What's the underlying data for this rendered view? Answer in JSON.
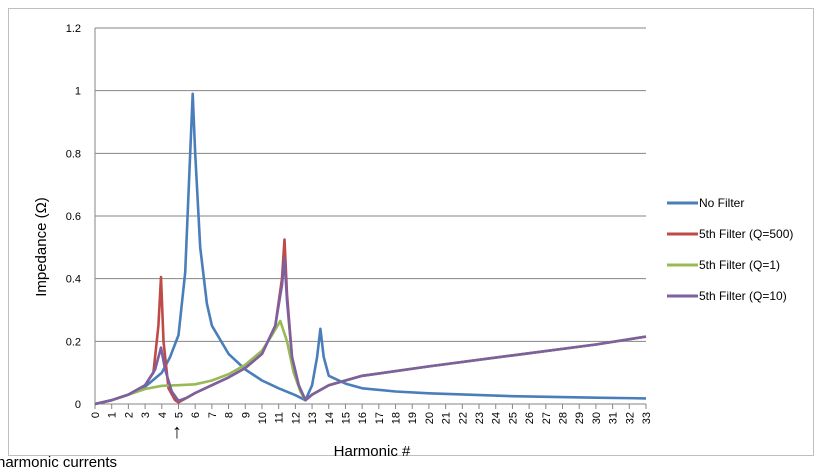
{
  "chart_data": {
    "type": "line",
    "xlabel": "Harmonic #",
    "ylabel": "Impedance (Ω)",
    "ylim": [
      0,
      1.2
    ],
    "yticks": [
      "0",
      "0.2",
      "0.4",
      "0.6",
      "0.8",
      "1",
      "1.2"
    ],
    "xlim": [
      0,
      33
    ],
    "xticks": [
      "0",
      "1",
      "2",
      "3",
      "4",
      "5",
      "6",
      "7",
      "8",
      "9",
      "10",
      "11",
      "12",
      "13",
      "14",
      "15",
      "16",
      "17",
      "18",
      "19",
      "20",
      "21",
      "22",
      "23",
      "24",
      "25",
      "26",
      "27",
      "28",
      "29",
      "30",
      "31",
      "32",
      "33"
    ],
    "grid": "horizontal",
    "legend_position": "right",
    "series": [
      {
        "name": "No Filter",
        "color": "#4a7ebb",
        "points": [
          [
            0,
            0
          ],
          [
            1,
            0.012
          ],
          [
            2,
            0.03
          ],
          [
            3,
            0.055
          ],
          [
            4,
            0.1
          ],
          [
            4.5,
            0.15
          ],
          [
            5,
            0.22
          ],
          [
            5.4,
            0.42
          ],
          [
            5.7,
            0.8
          ],
          [
            5.85,
            0.99
          ],
          [
            6,
            0.8
          ],
          [
            6.3,
            0.5
          ],
          [
            6.7,
            0.32
          ],
          [
            7,
            0.25
          ],
          [
            8,
            0.16
          ],
          [
            9,
            0.11
          ],
          [
            10,
            0.075
          ],
          [
            11,
            0.05
          ],
          [
            12,
            0.028
          ],
          [
            12.6,
            0.012
          ],
          [
            13,
            0.06
          ],
          [
            13.3,
            0.15
          ],
          [
            13.5,
            0.24
          ],
          [
            13.7,
            0.15
          ],
          [
            14,
            0.09
          ],
          [
            15,
            0.065
          ],
          [
            16,
            0.05
          ],
          [
            18,
            0.04
          ],
          [
            20,
            0.034
          ],
          [
            25,
            0.025
          ],
          [
            30,
            0.02
          ],
          [
            33,
            0.018
          ]
        ]
      },
      {
        "name": "5th Filter (Q=500)",
        "color": "#be4b48",
        "points": [
          [
            0,
            0
          ],
          [
            1,
            0.012
          ],
          [
            2,
            0.03
          ],
          [
            3,
            0.06
          ],
          [
            3.5,
            0.1
          ],
          [
            3.8,
            0.25
          ],
          [
            3.95,
            0.405
          ],
          [
            4.1,
            0.2
          ],
          [
            4.4,
            0.05
          ],
          [
            4.8,
            0.012
          ],
          [
            5,
            0.005
          ],
          [
            5.5,
            0.02
          ],
          [
            6,
            0.035
          ],
          [
            7,
            0.06
          ],
          [
            8,
            0.085
          ],
          [
            9,
            0.115
          ],
          [
            10,
            0.16
          ],
          [
            10.8,
            0.25
          ],
          [
            11.2,
            0.4
          ],
          [
            11.35,
            0.525
          ],
          [
            11.5,
            0.35
          ],
          [
            11.8,
            0.15
          ],
          [
            12.2,
            0.06
          ],
          [
            12.6,
            0.012
          ],
          [
            13,
            0.03
          ],
          [
            14,
            0.06
          ],
          [
            15,
            0.075
          ],
          [
            16,
            0.09
          ],
          [
            20,
            0.12
          ],
          [
            25,
            0.155
          ],
          [
            30,
            0.19
          ],
          [
            33,
            0.215
          ]
        ]
      },
      {
        "name": "5th Filter (Q=1)",
        "color": "#98b954",
        "points": [
          [
            0,
            0
          ],
          [
            1,
            0.012
          ],
          [
            2,
            0.03
          ],
          [
            3,
            0.048
          ],
          [
            4,
            0.058
          ],
          [
            5,
            0.06
          ],
          [
            6,
            0.063
          ],
          [
            7,
            0.075
          ],
          [
            8,
            0.095
          ],
          [
            9,
            0.125
          ],
          [
            10,
            0.17
          ],
          [
            10.6,
            0.22
          ],
          [
            11.1,
            0.265
          ],
          [
            11.5,
            0.2
          ],
          [
            11.9,
            0.1
          ],
          [
            12.3,
            0.04
          ],
          [
            12.6,
            0.012
          ],
          [
            13,
            0.03
          ],
          [
            14,
            0.06
          ],
          [
            15,
            0.075
          ],
          [
            16,
            0.09
          ],
          [
            20,
            0.12
          ],
          [
            25,
            0.155
          ],
          [
            30,
            0.19
          ],
          [
            33,
            0.215
          ]
        ]
      },
      {
        "name": "5th Filter (Q=10)",
        "color": "#7d60a0",
        "points": [
          [
            0,
            0
          ],
          [
            1,
            0.012
          ],
          [
            2,
            0.03
          ],
          [
            3,
            0.06
          ],
          [
            3.6,
            0.11
          ],
          [
            3.95,
            0.18
          ],
          [
            4.2,
            0.11
          ],
          [
            4.6,
            0.04
          ],
          [
            5,
            0.01
          ],
          [
            5.5,
            0.02
          ],
          [
            6,
            0.035
          ],
          [
            7,
            0.06
          ],
          [
            8,
            0.085
          ],
          [
            9,
            0.115
          ],
          [
            10,
            0.16
          ],
          [
            10.8,
            0.25
          ],
          [
            11.2,
            0.38
          ],
          [
            11.35,
            0.465
          ],
          [
            11.5,
            0.33
          ],
          [
            11.8,
            0.15
          ],
          [
            12.2,
            0.06
          ],
          [
            12.6,
            0.012
          ],
          [
            13,
            0.03
          ],
          [
            14,
            0.06
          ],
          [
            15,
            0.075
          ],
          [
            16,
            0.09
          ],
          [
            20,
            0.12
          ],
          [
            25,
            0.155
          ],
          [
            30,
            0.19
          ],
          [
            33,
            0.215
          ]
        ]
      }
    ]
  },
  "annotation": {
    "text": "harmonic currents",
    "arrow": "↑"
  }
}
